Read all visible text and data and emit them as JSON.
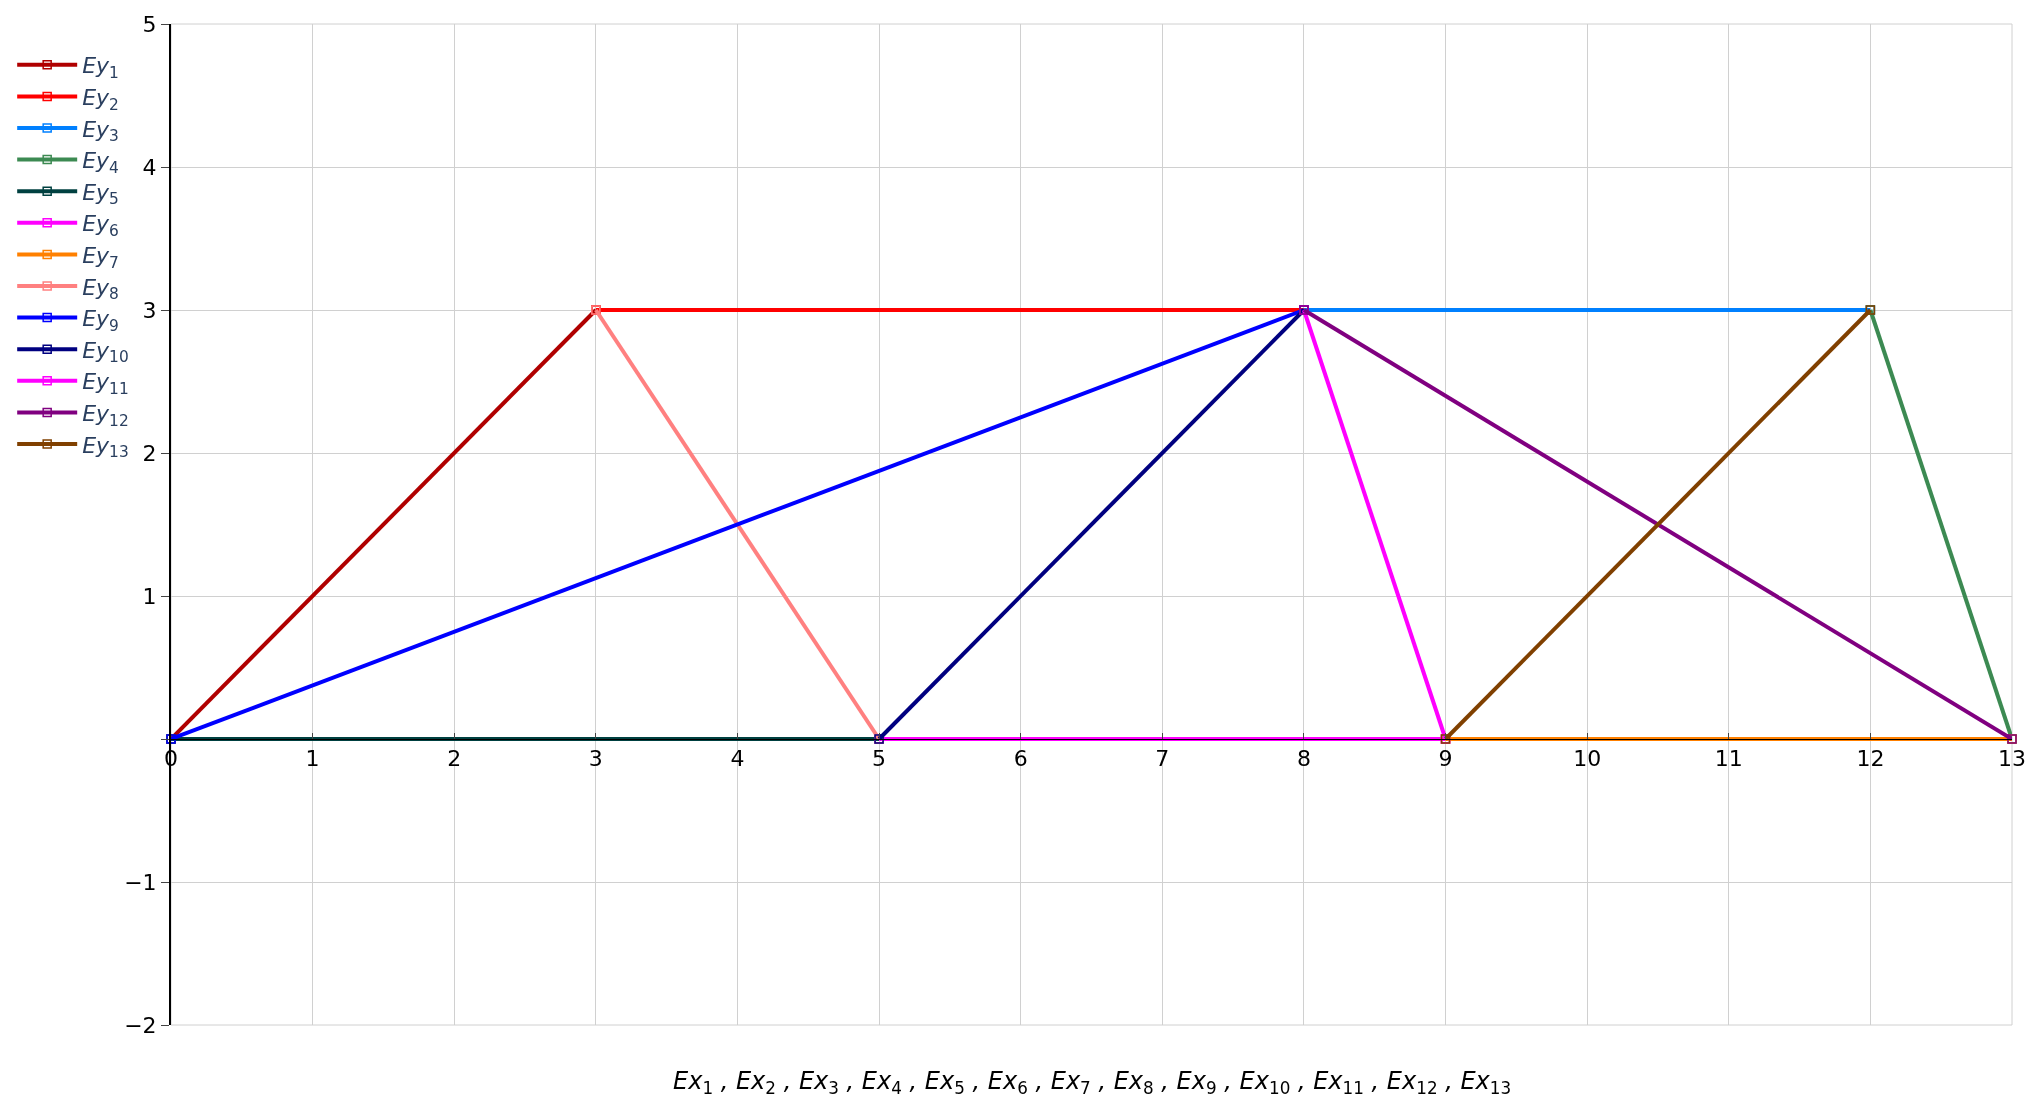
{
  "chart_data": {
    "type": "line",
    "xlabel": "Ex$_{1}$ , Ex$_{2}$ , Ex$_{3}$ , Ex$_{4}$ , Ex$_{5}$ , Ex$_{6}$ , Ex$_{7}$ , Ex$_{8}$ , Ex$_{9}$ , Ex$_{10}$ , Ex$_{11}$ , Ex$_{12}$ , Ex$_{13}$",
    "xlim": [
      0,
      13
    ],
    "xticks": [
      0,
      1,
      2,
      3,
      4,
      5,
      6,
      7,
      8,
      9,
      10,
      11,
      12,
      13
    ],
    "ylim": [
      -2,
      5
    ],
    "yticks": [
      {
        "value": -2,
        "label": "−2"
      },
      {
        "value": -1,
        "label": "−1"
      },
      {
        "value": 0,
        "label": null
      },
      1,
      2,
      3,
      4,
      5
    ],
    "grid": true,
    "legend": "left",
    "marker": "square",
    "line_style": "solid",
    "series": [
      {
        "name": "Ey$_{1}$",
        "color": "#b00000",
        "x": [
          0,
          3
        ],
        "values": [
          0,
          3
        ]
      },
      {
        "name": "Ey$_{2}$",
        "color": "#ff0000",
        "x": [
          3,
          8
        ],
        "values": [
          3,
          3
        ]
      },
      {
        "name": "Ey$_{3}$",
        "color": "#0080ff",
        "x": [
          8,
          12
        ],
        "values": [
          3,
          3
        ]
      },
      {
        "name": "Ey$_{4}$",
        "color": "#3c8a52",
        "x": [
          12,
          13
        ],
        "values": [
          3,
          0
        ]
      },
      {
        "name": "Ey$_{5}$",
        "color": "#004040",
        "x": [
          0,
          5
        ],
        "values": [
          0,
          0
        ]
      },
      {
        "name": "Ey$_{6}$",
        "color": "#ff00ff",
        "x": [
          5,
          9
        ],
        "values": [
          0,
          0
        ]
      },
      {
        "name": "Ey$_{7}$",
        "color": "#ff8000",
        "x": [
          9,
          13
        ],
        "values": [
          0,
          0
        ]
      },
      {
        "name": "Ey$_{8}$",
        "color": "#ff8080",
        "x": [
          3,
          5
        ],
        "values": [
          3,
          0
        ]
      },
      {
        "name": "Ey$_{9}$",
        "color": "#0000ff",
        "x": [
          0,
          8
        ],
        "values": [
          0,
          3
        ]
      },
      {
        "name": "Ey$_{10}$",
        "color": "#000080",
        "x": [
          5,
          8
        ],
        "values": [
          0,
          3
        ]
      },
      {
        "name": "Ey$_{11}$",
        "color": "#ff00ff",
        "x": [
          8,
          9
        ],
        "values": [
          3,
          0
        ]
      },
      {
        "name": "Ey$_{12}$",
        "color": "#800080",
        "x": [
          8,
          13
        ],
        "values": [
          3,
          0
        ]
      },
      {
        "name": "Ey$_{13}$",
        "color": "#804000",
        "x": [
          9,
          12
        ],
        "values": [
          0,
          3
        ]
      }
    ]
  }
}
